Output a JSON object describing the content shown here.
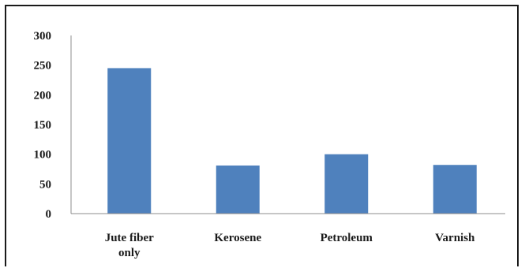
{
  "chart_data": {
    "type": "bar",
    "title": "",
    "xlabel": "",
    "ylabel": "",
    "categories": [
      [
        "Jute fiber",
        "only"
      ],
      [
        "Kerosene"
      ],
      [
        "Petroleum"
      ],
      [
        "Varnish"
      ]
    ],
    "values": [
      245,
      81,
      100,
      82
    ],
    "ylim": [
      0,
      300
    ],
    "yticks": [
      "0",
      "50",
      "100",
      "150",
      "200",
      "250",
      "300"
    ],
    "grid": false,
    "legend": "none",
    "bar_color": "#4f81bd",
    "axis_color": "#8c8c8c"
  }
}
